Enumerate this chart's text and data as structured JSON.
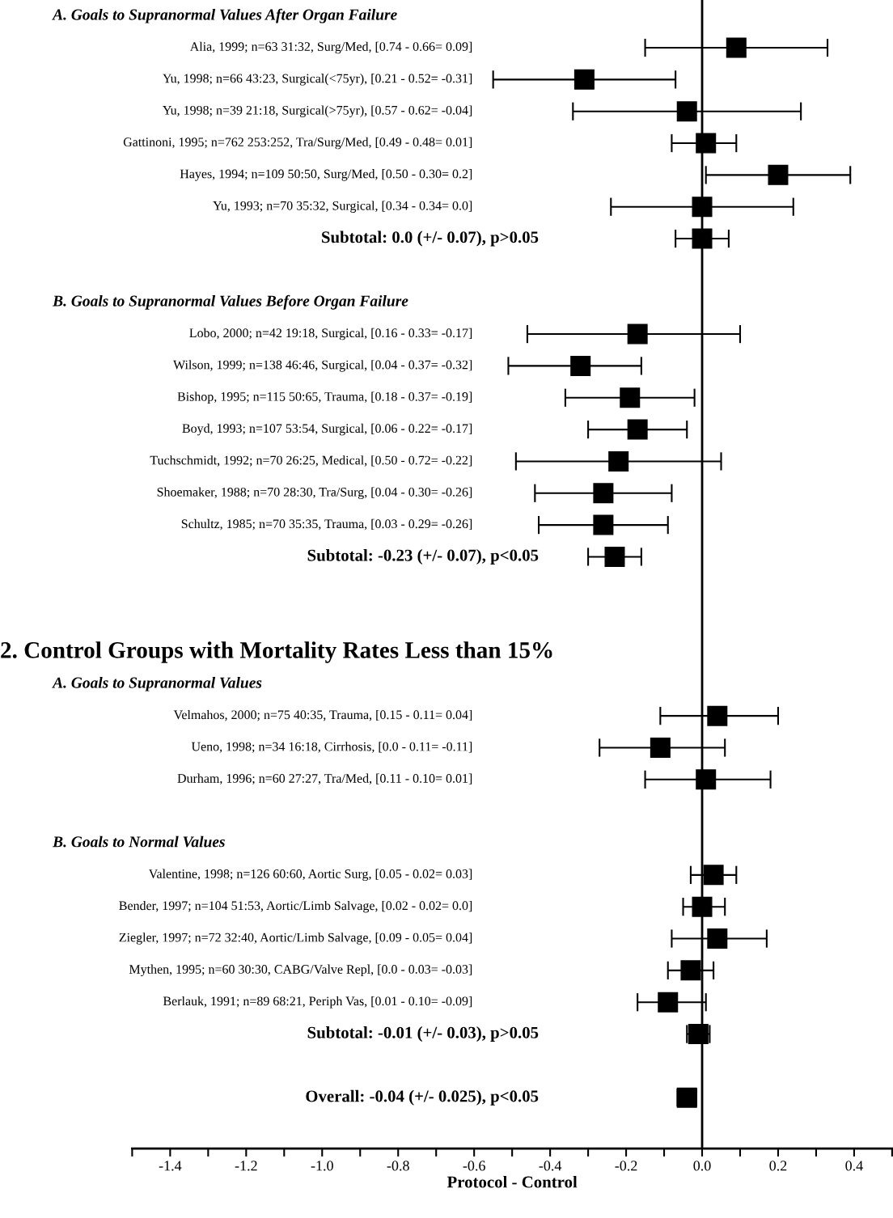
{
  "chart_data": {
    "type": "scatter",
    "xlabel": "Protocol - Control",
    "marker": "square",
    "orientation": "horizontal",
    "categories": [
      "A. Goals to Supranormal Values After Organ Failure",
      "Alia, 1999; n=63 31:32, Surg/Med, [0.74 - 0.66= 0.09]",
      "Yu, 1998; n=66 43:23, Surgical(<75yr), [0.21 - 0.52= -0.31]",
      "Yu, 1998; n=39 21:18, Surgical(>75yr), [0.57 - 0.62= -0.04]",
      "Gattinoni, 1995; n=762 253:252, Tra/Surg/Med, [0.49 - 0.48= 0.01]",
      "Hayes, 1994; n=109 50:50, Surg/Med, [0.50 - 0.30= 0.2]",
      "Yu, 1993; n=70 35:32, Surgical, [0.34 - 0.34= 0.0]",
      "Subtotal: 0.0 (+/- 0.07), p>0.05",
      null,
      "B. Goals to Supranormal Values Before Organ Failure",
      "Lobo, 2000; n=42 19:18, Surgical, [0.16 - 0.33= -0.17]",
      "Wilson, 1999; n=138 46:46, Surgical, [0.04 - 0.37= -0.32]",
      "Bishop, 1995; n=115 50:65, Trauma, [0.18 - 0.37= -0.19]",
      "Boyd, 1993; n=107 53:54, Surgical, [0.06 - 0.22= -0.17]",
      "Tuchschmidt, 1992; n=70 26:25, Medical, [0.50 - 0.72= -0.22]",
      "Shoemaker, 1988; n=70 28:30, Tra/Surg, [0.04 - 0.30= -0.26]",
      "Schultz, 1985; n=70 35:35, Trauma, [0.03 - 0.29= -0.26]",
      "Subtotal: -0.23 (+/- 0.07), p<0.05",
      null,
      null,
      "2. Control Groups with Mortality Rates Less than 15%",
      "A. Goals to Supranormal Values",
      "Velmahos, 2000; n=75 40:35, Trauma, [0.15 - 0.11= 0.04]",
      "Ueno, 1998; n=34 16:18, Cirrhosis, [0.0 - 0.11= -0.11]",
      "Durham, 1996; n=60 27:27, Tra/Med, [0.11 - 0.10= 0.01]",
      null,
      "B. Goals to Normal Values",
      "Valentine, 1998; n=126 60:60, Aortic Surg, [0.05 - 0.02= 0.03]",
      "Bender, 1997; n=104 51:53, Aortic/Limb Salvage, [0.02 - 0.02= 0.0]",
      "Ziegler, 1997; n=72 32:40, Aortic/Limb Salvage, [0.09 - 0.05= 0.04]",
      "Mythen, 1995; n=60 30:30, CABG/Valve Repl, [0.0 - 0.03= -0.03]",
      "Berlauk, 1991; n=89 68:21, Periph Vas, [0.01 - 0.10= -0.09]",
      "Subtotal: -0.01 (+/- 0.03), p>0.05",
      null,
      "Overall: -0.04 (+/- 0.025), p<0.05"
    ],
    "series": [
      {
        "color": "#000000",
        "values": [
          null,
          0.09,
          -0.31,
          -0.04,
          0.01,
          0.2,
          0.0,
          null,
          null,
          null,
          -0.17,
          -0.32,
          -0.19,
          -0.17,
          -0.22,
          -0.26,
          -0.26,
          null,
          null,
          null,
          null,
          null,
          0.04,
          -0.11,
          0.01,
          null,
          null,
          0.03,
          0.0,
          0.04,
          -0.03,
          -0.09,
          null,
          null,
          null
        ],
        "errors": [
          null,
          [
            -0.15,
            0.33
          ],
          [
            -0.55,
            -0.07
          ],
          [
            -0.34,
            0.26
          ],
          [
            -0.08,
            0.09
          ],
          [
            0.01,
            0.39
          ],
          [
            -0.24,
            0.24
          ],
          null,
          null,
          null,
          [
            -0.46,
            0.1
          ],
          [
            -0.51,
            -0.16
          ],
          [
            -0.36,
            -0.02
          ],
          [
            -0.3,
            -0.04
          ],
          [
            -0.49,
            0.05
          ],
          [
            -0.44,
            -0.08
          ],
          [
            -0.43,
            -0.09
          ],
          null,
          null,
          null,
          null,
          null,
          [
            -0.11,
            0.2
          ],
          [
            -0.27,
            0.06
          ],
          [
            -0.15,
            0.18
          ],
          null,
          null,
          [
            -0.03,
            0.09
          ],
          [
            -0.05,
            0.06
          ],
          [
            -0.08,
            0.17
          ],
          [
            -0.09,
            0.03
          ],
          [
            -0.17,
            0.01
          ],
          null,
          null,
          null
        ]
      },
      {
        "color": "#000000",
        "values": [
          null,
          null,
          null,
          null,
          null,
          null,
          null,
          0.0,
          null,
          null,
          null,
          null,
          null,
          null,
          null,
          null,
          null,
          -0.23,
          null,
          null,
          null,
          null,
          null,
          null,
          null,
          null,
          null,
          null,
          null,
          null,
          null,
          null,
          -0.01,
          null,
          -0.04
        ],
        "errors": [
          null,
          null,
          null,
          null,
          null,
          null,
          null,
          [
            -0.07,
            0.07
          ],
          null,
          null,
          null,
          null,
          null,
          null,
          null,
          null,
          null,
          [
            -0.3,
            -0.16
          ],
          null,
          null,
          null,
          null,
          null,
          null,
          null,
          null,
          null,
          null,
          null,
          null,
          null,
          null,
          [
            -0.04,
            0.02
          ],
          null,
          [
            -0.065,
            -0.015
          ]
        ]
      }
    ],
    "xlim": [
      -1.5,
      0.5
    ],
    "xticks": [
      {
        "value": -1.5,
        "label": null
      },
      -1.4,
      {
        "value": -1.3,
        "label": null
      },
      -1.2,
      {
        "value": -1.1,
        "label": null
      },
      {
        "value": -1.0,
        "label": "-1.0"
      },
      {
        "value": -0.9,
        "label": null
      },
      -0.8,
      {
        "value": -0.7,
        "label": null
      },
      -0.6,
      {
        "value": -0.5,
        "label": null
      },
      -0.4,
      {
        "value": -0.3,
        "label": null
      },
      -0.2,
      {
        "value": -0.1,
        "label": null
      },
      {
        "value": 0.0,
        "label": "0.0"
      },
      {
        "value": 0.1,
        "label": null
      },
      0.2,
      {
        "value": 0.3,
        "label": null
      },
      0.4,
      {
        "value": 0.5,
        "label": null
      }
    ],
    "tick_labels": "x",
    "ref_lines": [
      {
        "axis": "x",
        "value": 0,
        "color": "#000000"
      }
    ]
  }
}
